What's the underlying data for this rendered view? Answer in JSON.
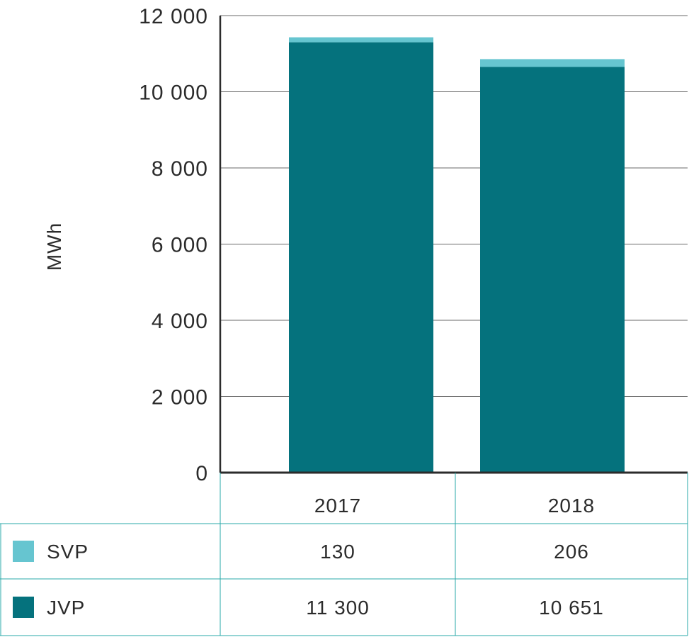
{
  "chart_data": {
    "type": "bar",
    "stacked": true,
    "categories": [
      "2017",
      "2018"
    ],
    "series": [
      {
        "name": "JVP",
        "values": [
          11300,
          10651
        ],
        "color": "#05727d"
      },
      {
        "name": "SVP",
        "values": [
          130,
          206
        ],
        "color": "#66c5d0"
      }
    ],
    "ylabel": "MWh",
    "ylim": [
      0,
      12000
    ],
    "yticks": [
      0,
      2000,
      4000,
      6000,
      8000,
      10000,
      12000
    ],
    "ytick_labels": [
      "0",
      "2 000",
      "4 000",
      "6 000",
      "8 000",
      "10 000",
      "12 000"
    ],
    "grid": true,
    "legend": "table-below",
    "table": {
      "header": [
        "2017",
        "2018"
      ],
      "rows": [
        {
          "legend": "SVP",
          "values": [
            "130",
            "206"
          ],
          "color": "#66c5d0"
        },
        {
          "legend": "JVP",
          "values": [
            "11 300",
            "10 651"
          ],
          "color": "#05727d"
        }
      ]
    }
  }
}
